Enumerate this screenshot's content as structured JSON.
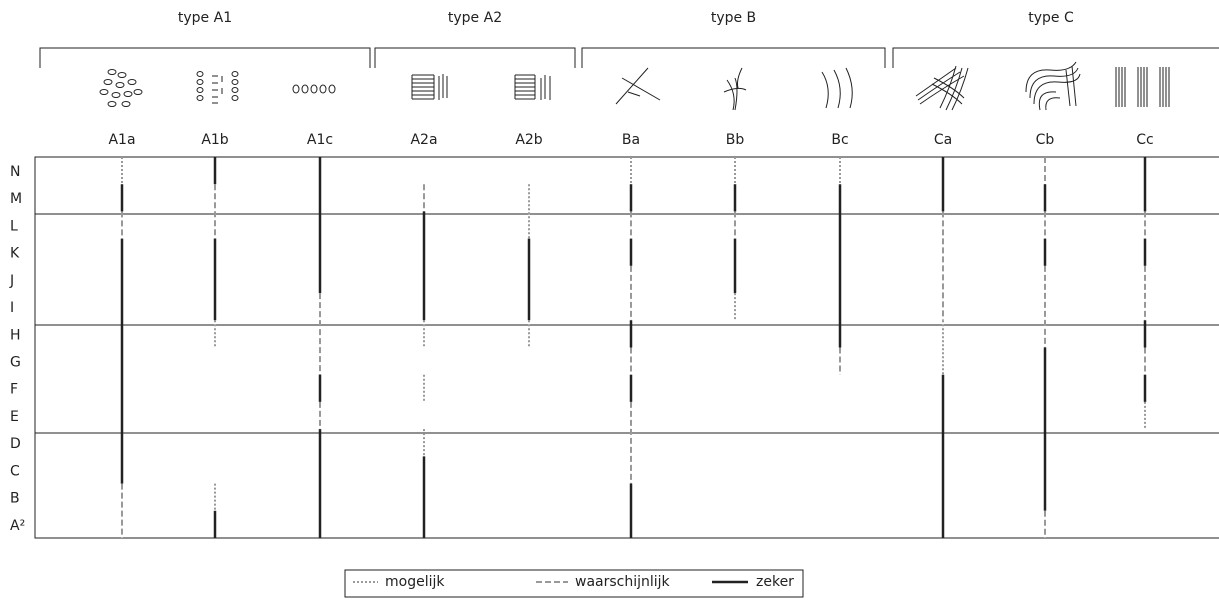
{
  "groups": [
    {
      "label": "type A1"
    },
    {
      "label": "type A2"
    },
    {
      "label": "type B"
    },
    {
      "label": "type C"
    }
  ],
  "rows": [
    "N",
    "M",
    "L",
    "K",
    "J",
    "I",
    "H",
    "G",
    "F",
    "E",
    "D",
    "C",
    "B",
    "A²"
  ],
  "columns": [
    {
      "label": "A1a",
      "segments": [
        {
          "style": "mogelijk",
          "from": "N",
          "to": "N"
        },
        {
          "style": "zeker",
          "from": "M",
          "to": "M"
        },
        {
          "style": "waarschijnlijk",
          "from": "L",
          "to": "L"
        },
        {
          "style": "zeker",
          "from": "K",
          "to": "C"
        },
        {
          "style": "waarschijnlijk",
          "from": "B",
          "to": "A²"
        }
      ]
    },
    {
      "label": "A1b",
      "segments": [
        {
          "style": "zeker",
          "from": "N",
          "to": "N"
        },
        {
          "style": "waarschijnlijk",
          "from": "M",
          "to": "L"
        },
        {
          "style": "zeker",
          "from": "K",
          "to": "I"
        },
        {
          "style": "mogelijk",
          "from": "H",
          "to": "H"
        },
        {
          "style": "mogelijk",
          "from": "B",
          "to": "B"
        },
        {
          "style": "zeker",
          "from": "A²",
          "to": "A²"
        }
      ]
    },
    {
      "label": "A1c",
      "segments": [
        {
          "style": "zeker",
          "from": "N",
          "to": "J"
        },
        {
          "style": "waarschijnlijk",
          "from": "I",
          "to": "G"
        },
        {
          "style": "zeker",
          "from": "F",
          "to": "F"
        },
        {
          "style": "waarschijnlijk",
          "from": "E",
          "to": "E"
        },
        {
          "style": "zeker",
          "from": "D",
          "to": "A²"
        }
      ]
    },
    {
      "label": "A2a",
      "segments": [
        {
          "style": "waarschijnlijk",
          "from": "M",
          "to": "M"
        },
        {
          "style": "zeker",
          "from": "L",
          "to": "I"
        },
        {
          "style": "mogelijk",
          "from": "H",
          "to": "H"
        },
        {
          "style": "mogelijk",
          "from": "F",
          "to": "F"
        },
        {
          "style": "mogelijk",
          "from": "D",
          "to": "D"
        },
        {
          "style": "zeker",
          "from": "C",
          "to": "A²"
        }
      ]
    },
    {
      "label": "A2b",
      "segments": [
        {
          "style": "mogelijk",
          "from": "M",
          "to": "L"
        },
        {
          "style": "zeker",
          "from": "K",
          "to": "I"
        },
        {
          "style": "mogelijk",
          "from": "H",
          "to": "H"
        }
      ]
    },
    {
      "label": "Ba",
      "segments": [
        {
          "style": "mogelijk",
          "from": "N",
          "to": "N"
        },
        {
          "style": "zeker",
          "from": "M",
          "to": "M"
        },
        {
          "style": "waarschijnlijk",
          "from": "L",
          "to": "L"
        },
        {
          "style": "zeker",
          "from": "K",
          "to": "K"
        },
        {
          "style": "waarschijnlijk",
          "from": "J",
          "to": "I"
        },
        {
          "style": "zeker",
          "from": "H",
          "to": "H"
        },
        {
          "style": "waarschijnlijk",
          "from": "G",
          "to": "G"
        },
        {
          "style": "zeker",
          "from": "F",
          "to": "F"
        },
        {
          "style": "waarschijnlijk",
          "from": "E",
          "to": "C"
        },
        {
          "style": "zeker",
          "from": "B",
          "to": "A²"
        }
      ]
    },
    {
      "label": "Bb",
      "segments": [
        {
          "style": "mogelijk",
          "from": "N",
          "to": "N"
        },
        {
          "style": "zeker",
          "from": "M",
          "to": "M"
        },
        {
          "style": "waarschijnlijk",
          "from": "L",
          "to": "L"
        },
        {
          "style": "zeker",
          "from": "K",
          "to": "J"
        },
        {
          "style": "mogelijk",
          "from": "I",
          "to": "I"
        }
      ]
    },
    {
      "label": "Bc",
      "segments": [
        {
          "style": "mogelijk",
          "from": "N",
          "to": "N"
        },
        {
          "style": "zeker",
          "from": "M",
          "to": "H"
        },
        {
          "style": "waarschijnlijk",
          "from": "G",
          "to": "G"
        }
      ]
    },
    {
      "label": "Ca",
      "segments": [
        {
          "style": "zeker",
          "from": "N",
          "to": "M"
        },
        {
          "style": "waarschijnlijk",
          "from": "L",
          "to": "I"
        },
        {
          "style": "mogelijk",
          "from": "H",
          "to": "G"
        },
        {
          "style": "zeker",
          "from": "F",
          "to": "A²"
        }
      ]
    },
    {
      "label": "Cb",
      "segments": [
        {
          "style": "waarschijnlijk",
          "from": "N",
          "to": "N"
        },
        {
          "style": "zeker",
          "from": "M",
          "to": "M"
        },
        {
          "style": "waarschijnlijk",
          "from": "L",
          "to": "L"
        },
        {
          "style": "zeker",
          "from": "K",
          "to": "K"
        },
        {
          "style": "waarschijnlijk",
          "from": "J",
          "to": "H"
        },
        {
          "style": "zeker",
          "from": "G",
          "to": "B"
        },
        {
          "style": "waarschijnlijk",
          "from": "A²",
          "to": "A²"
        }
      ]
    },
    {
      "label": "Cc",
      "segments": [
        {
          "style": "zeker",
          "from": "N",
          "to": "M"
        },
        {
          "style": "waarschijnlijk",
          "from": "L",
          "to": "L"
        },
        {
          "style": "zeker",
          "from": "K",
          "to": "K"
        },
        {
          "style": "waarschijnlijk",
          "from": "J",
          "to": "I"
        },
        {
          "style": "zeker",
          "from": "H",
          "to": "H"
        },
        {
          "style": "waarschijnlijk",
          "from": "G",
          "to": "G"
        },
        {
          "style": "zeker",
          "from": "F",
          "to": "F"
        },
        {
          "style": "mogelijk",
          "from": "E",
          "to": "E"
        }
      ]
    }
  ],
  "legend": [
    "mogelijk",
    "waarschijnlijk",
    "zeker"
  ]
}
